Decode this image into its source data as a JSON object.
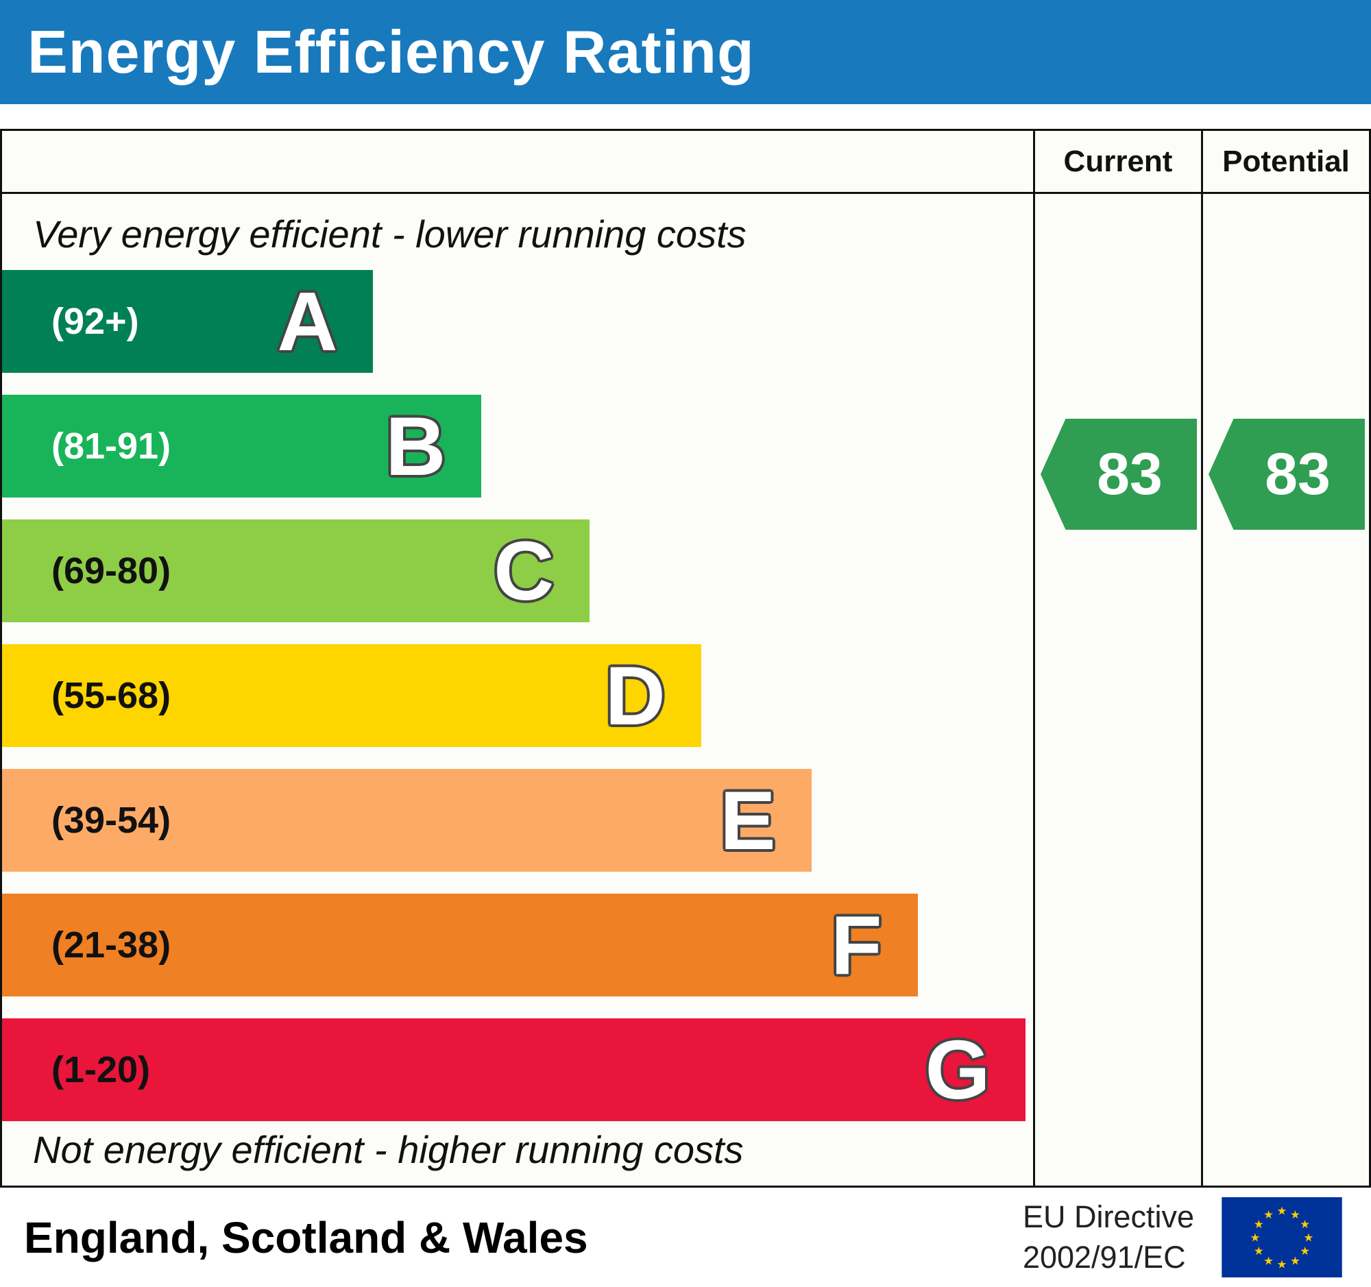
{
  "title": "Energy Efficiency Rating",
  "columns": {
    "current": "Current",
    "potential": "Potential"
  },
  "notes": {
    "top": "Very energy efficient - lower running costs",
    "bottom": "Not energy efficient - higher running costs"
  },
  "bands": [
    {
      "letter": "A",
      "range": "(92+)",
      "color": "#008054",
      "range_color": "#ffffff",
      "width_pct": 36
    },
    {
      "letter": "B",
      "range": "(81-91)",
      "color": "#19b459",
      "range_color": "#ffffff",
      "width_pct": 46.5
    },
    {
      "letter": "C",
      "range": "(69-80)",
      "color": "#8dce46",
      "range_color": "#111111",
      "width_pct": 57
    },
    {
      "letter": "D",
      "range": "(55-68)",
      "color": "#ffd500",
      "range_color": "#111111",
      "width_pct": 67.8
    },
    {
      "letter": "E",
      "range": "(39-54)",
      "color": "#fcaa65",
      "range_color": "#111111",
      "width_pct": 78.5
    },
    {
      "letter": "F",
      "range": "(21-38)",
      "color": "#ef8023",
      "range_color": "#111111",
      "width_pct": 88.8
    },
    {
      "letter": "G",
      "range": "(1-20)",
      "color": "#e9153b",
      "range_color": "#111111",
      "width_pct": 99.3
    }
  ],
  "current": {
    "value": "83",
    "color": "#2f9e52"
  },
  "potential": {
    "value": "83",
    "color": "#2f9e52"
  },
  "footer": {
    "region": "England, Scotland & Wales",
    "directive_line1": "EU Directive",
    "directive_line2": "2002/91/EC"
  },
  "chart_data": {
    "type": "bar",
    "title": "Energy Efficiency Rating",
    "categories": [
      "A",
      "B",
      "C",
      "D",
      "E",
      "F",
      "G"
    ],
    "band_ranges": [
      "92+",
      "81-91",
      "69-80",
      "55-68",
      "39-54",
      "21-38",
      "1-20"
    ],
    "band_colors": [
      "#008054",
      "#19b459",
      "#8dce46",
      "#ffd500",
      "#fcaa65",
      "#ef8023",
      "#e9153b"
    ],
    "bar_widths_pct": [
      36,
      46.5,
      57,
      67.8,
      78.5,
      88.8,
      99.3
    ],
    "series": [
      {
        "name": "Current",
        "values": [
          83
        ]
      },
      {
        "name": "Potential",
        "values": [
          83
        ]
      }
    ],
    "current_rating": 83,
    "current_band": "B",
    "potential_rating": 83,
    "potential_band": "B",
    "annotations": [
      "Very energy efficient - lower running costs",
      "Not energy efficient - higher running costs"
    ],
    "legend_position": "none",
    "region": "England, Scotland & Wales",
    "directive": "EU Directive 2002/91/EC"
  }
}
